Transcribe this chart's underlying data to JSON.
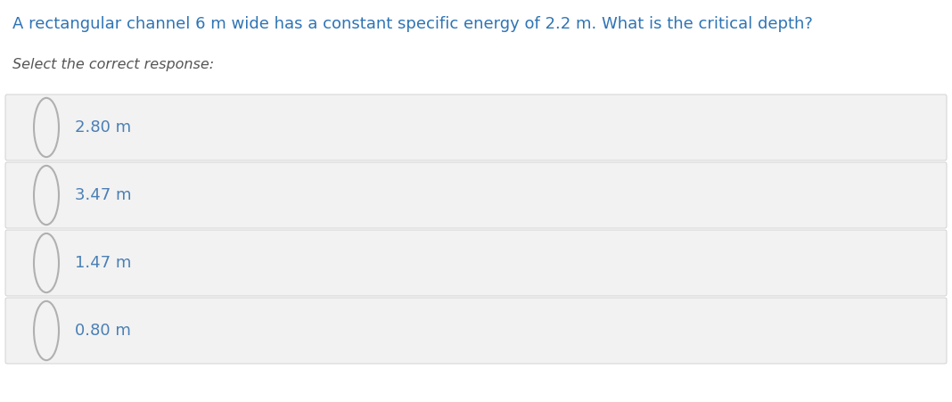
{
  "title": "A rectangular channel 6 m wide has a constant specific energy of 2.2 m. What is the critical depth?",
  "title_color": "#2e74b5",
  "subtitle": "Select the correct response:",
  "subtitle_color": "#555555",
  "options": [
    "2.80 m",
    "3.47 m",
    "1.47 m",
    "0.80 m"
  ],
  "option_color": "#4a7fb5",
  "background_color": "#ffffff",
  "option_bg_color": "#f2f2f2",
  "option_border_color": "#cccccc",
  "circle_edge_color": "#b0b0b0",
  "fig_width": 10.68,
  "fig_height": 4.51,
  "title_fontsize": 13.0,
  "subtitle_fontsize": 11.5,
  "option_fontsize": 13.0
}
